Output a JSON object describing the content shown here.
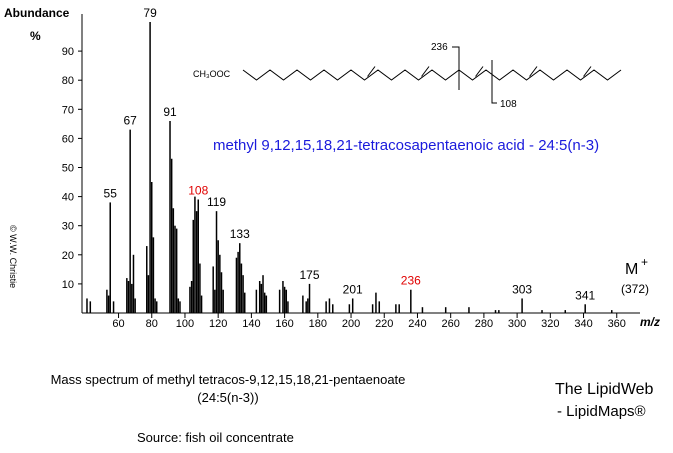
{
  "chart_data": {
    "type": "bar",
    "y_label": "Abundance",
    "y_unit": "%",
    "x_label": "m/z",
    "xlim": [
      38,
      374
    ],
    "ylim": [
      0,
      100
    ],
    "xticks": [
      60,
      80,
      100,
      120,
      140,
      160,
      180,
      200,
      220,
      240,
      260,
      280,
      300,
      320,
      340,
      360
    ],
    "yticks": [
      10,
      20,
      30,
      40,
      50,
      60,
      70,
      80,
      90
    ],
    "color": "#000000",
    "labeled_peaks": {
      "x": [
        55,
        67,
        79,
        91,
        108,
        119,
        133,
        175,
        201,
        236,
        303,
        341
      ],
      "values": [
        38,
        63,
        100,
        66,
        39,
        35,
        24,
        10,
        5,
        8,
        5,
        3
      ],
      "label_colors": [
        "#000000",
        "#000000",
        "#000000",
        "#000000",
        "#e00000",
        "#000000",
        "#000000",
        "#000000",
        "#000000",
        "#e00000",
        "#000000",
        "#000000"
      ]
    },
    "peaks": {
      "x": [
        41,
        43,
        53,
        54,
        57,
        65,
        66,
        68,
        69,
        70,
        77,
        78,
        80,
        81,
        82,
        83,
        92,
        93,
        94,
        95,
        96,
        97,
        103,
        104,
        105,
        106,
        107,
        109,
        110,
        117,
        118,
        120,
        121,
        122,
        123,
        131,
        132,
        134,
        135,
        136,
        143,
        145,
        146,
        147,
        148,
        149,
        157,
        159,
        160,
        161,
        162,
        171,
        173,
        174,
        185,
        187,
        189,
        199,
        213,
        215,
        217,
        227,
        229,
        243,
        257,
        271,
        287,
        289,
        315,
        329,
        357
      ],
      "values": [
        5,
        4,
        8,
        6,
        4,
        12,
        11,
        10,
        20,
        5,
        23,
        13,
        45,
        26,
        5,
        4,
        53,
        36,
        30,
        29,
        5,
        4,
        9,
        11,
        32,
        40,
        35,
        17,
        6,
        16,
        8,
        25,
        20,
        14,
        8,
        19,
        21,
        17,
        13,
        7,
        8,
        11,
        10,
        13,
        7,
        6,
        8,
        11,
        9,
        8,
        4,
        6,
        4,
        5,
        4,
        5,
        3,
        3,
        3,
        7,
        4,
        3,
        3,
        2,
        2,
        2,
        1,
        1,
        1,
        1,
        1
      ]
    },
    "molecular_ion": {
      "label": "M",
      "charge": "+",
      "mass": "(372)"
    },
    "compound": "methyl 9,12,15,18,21-tetracosapentaenoic acid  -  24:5(n-3)",
    "structure": {
      "group": "CH₃OOC",
      "fragment_a": "236",
      "fragment_b": "108"
    },
    "copyright": "© W.W. Christie",
    "caption": [
      "Mass spectrum of methyl tetracos-9,12,15,18,21-pentaenoate",
      "(24:5(n-3))"
    ],
    "source": "Source:  fish oil concentrate",
    "brand": [
      "The LipidWeb",
      "- LipidMaps®"
    ]
  }
}
